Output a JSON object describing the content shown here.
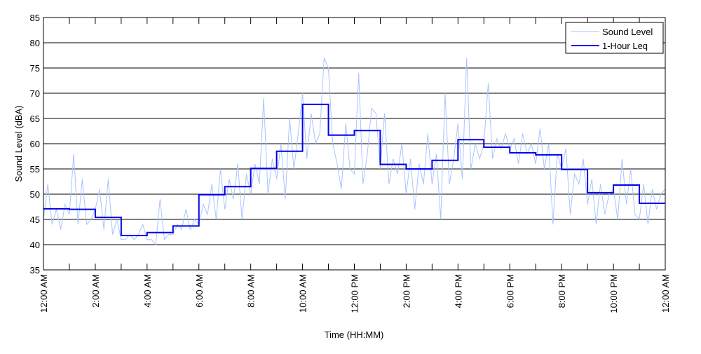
{
  "chart_data": {
    "type": "line",
    "title": "",
    "xlabel": "Time (HH:MM)",
    "ylabel": "Sound Level (dBA)",
    "ylim": [
      35,
      85
    ],
    "yticks": [
      35,
      40,
      45,
      50,
      55,
      60,
      65,
      70,
      75,
      80,
      85
    ],
    "xlim_hours": [
      0,
      24
    ],
    "xtick_labels": [
      "12:00 AM",
      "2:00 AM",
      "4:00 AM",
      "6:00 AM",
      "8:00 AM",
      "10:00 AM",
      "12:00 PM",
      "2:00 PM",
      "4:00 PM",
      "6:00 PM",
      "8:00 PM",
      "10:00 PM",
      "12:00 AM"
    ],
    "grid": "horizontal",
    "legend_position": "top-right",
    "colors": {
      "sound_level": "#a8c4ff",
      "leq": "#0000ee"
    },
    "series": [
      {
        "name": "Sound Level",
        "interval_minutes": 10,
        "values": [
          45,
          52,
          44,
          47,
          43,
          48,
          46,
          58,
          44,
          53,
          44,
          45,
          47,
          51,
          43,
          53,
          42,
          45,
          41,
          41,
          42,
          41,
          42,
          44,
          41,
          41,
          40,
          49,
          41,
          42,
          42,
          44,
          43,
          47,
          43,
          45,
          44,
          48,
          46,
          52,
          45,
          55,
          47,
          53,
          49,
          56,
          45,
          54,
          50,
          56,
          52,
          69,
          50,
          57,
          53,
          60,
          49,
          65,
          55,
          62,
          70,
          57,
          66,
          60,
          62,
          77,
          75,
          60,
          56,
          51,
          64,
          55,
          54,
          74,
          52,
          58,
          67,
          66,
          55,
          66,
          52,
          57,
          54,
          60,
          50,
          57,
          47,
          56,
          52,
          62,
          52,
          58,
          45,
          70,
          52,
          57,
          64,
          53,
          77,
          55,
          60,
          57,
          60,
          72,
          57,
          61,
          59,
          62,
          59,
          61,
          56,
          62,
          58,
          60,
          56,
          63,
          55,
          60,
          44,
          58,
          55,
          59,
          46,
          54,
          52,
          57,
          48,
          53,
          44,
          52,
          46,
          50,
          51,
          45,
          57,
          48,
          55,
          46,
          45,
          52,
          44,
          51,
          47,
          50,
          51
        ]
      },
      {
        "name": "1-Hour Leq",
        "interval_minutes": 60,
        "values": [
          47.1,
          47.0,
          45.4,
          41.8,
          42.4,
          43.7,
          49.9,
          51.5,
          55.1,
          58.5,
          67.8,
          61.7,
          62.6,
          55.9,
          55.0,
          56.7,
          60.8,
          59.3,
          58.2,
          57.8,
          54.9,
          50.3,
          51.8,
          48.2
        ]
      }
    ]
  }
}
